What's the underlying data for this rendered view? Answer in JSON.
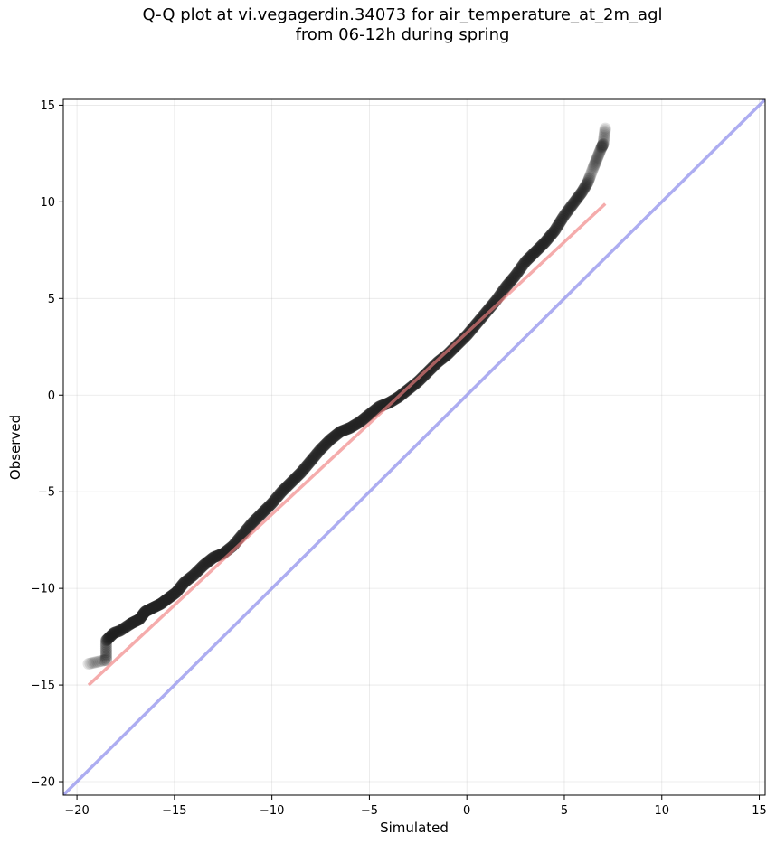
{
  "chart_data": {
    "type": "scatter",
    "title": "Q-Q plot at vi.vegagerdin.34073 for air_temperature_at_2m_agl",
    "subtitle": "from 06-12h during spring",
    "xlabel": "Simulated",
    "ylabel": "Observed",
    "xlim": [
      -20.7,
      15.3
    ],
    "ylim": [
      -20.7,
      15.3
    ],
    "xticks": [
      -20,
      -15,
      -10,
      -5,
      0,
      5,
      10,
      15
    ],
    "yticks": [
      -20,
      -15,
      -10,
      -5,
      0,
      5,
      10,
      15
    ],
    "xtick_labels": [
      "−20",
      "−15",
      "−10",
      "−5",
      "0",
      "5",
      "10",
      "15"
    ],
    "ytick_labels": [
      "−20",
      "−15",
      "−10",
      "−5",
      "0",
      "5",
      "10",
      "15"
    ],
    "grid": true,
    "quantile_points": {
      "x": [
        -19.4,
        -18.5,
        -18.5,
        -18.3,
        -18.1,
        -17.8,
        -17.5,
        -17.2,
        -16.8,
        -16.5,
        -16.1,
        -15.7,
        -15.3,
        -14.9,
        -14.5,
        -14.0,
        -13.5,
        -13.0,
        -12.5,
        -12.0,
        -11.5,
        -11.0,
        -10.5,
        -10.0,
        -9.5,
        -9.0,
        -8.5,
        -8.0,
        -7.5,
        -7.0,
        -6.5,
        -6.0,
        -5.5,
        -5.0,
        -4.5,
        -4.0,
        -3.5,
        -3.0,
        -2.5,
        -2.0,
        -1.5,
        -1.0,
        -0.5,
        0.0,
        0.5,
        1.0,
        1.5,
        2.0,
        2.5,
        3.0,
        3.5,
        4.0,
        4.5,
        5.0,
        5.3,
        5.6,
        5.9,
        6.2,
        6.5,
        6.7,
        6.9,
        7.0,
        7.1
      ],
      "y": [
        -13.9,
        -13.7,
        -12.7,
        -12.5,
        -12.3,
        -12.2,
        -12.0,
        -11.8,
        -11.6,
        -11.2,
        -11.0,
        -10.8,
        -10.5,
        -10.2,
        -9.7,
        -9.3,
        -8.8,
        -8.4,
        -8.2,
        -7.8,
        -7.2,
        -6.6,
        -6.1,
        -5.6,
        -5.0,
        -4.5,
        -4.0,
        -3.4,
        -2.8,
        -2.3,
        -1.9,
        -1.7,
        -1.4,
        -1.0,
        -0.6,
        -0.4,
        -0.1,
        0.3,
        0.7,
        1.2,
        1.7,
        2.1,
        2.6,
        3.1,
        3.7,
        4.3,
        4.9,
        5.6,
        6.2,
        6.9,
        7.4,
        7.9,
        8.5,
        9.3,
        9.7,
        10.1,
        10.5,
        11.0,
        11.8,
        12.3,
        12.8,
        13.0,
        13.8
      ]
    },
    "fit_line": {
      "x": [
        -19.4,
        7.1
      ],
      "y": [
        -15.0,
        9.9
      ],
      "color": "#f08080"
    },
    "identity_line": {
      "x": [
        -20.7,
        15.3
      ],
      "y": [
        -20.7,
        15.3
      ],
      "color": "#9999ee"
    },
    "point_color": "#222222"
  }
}
